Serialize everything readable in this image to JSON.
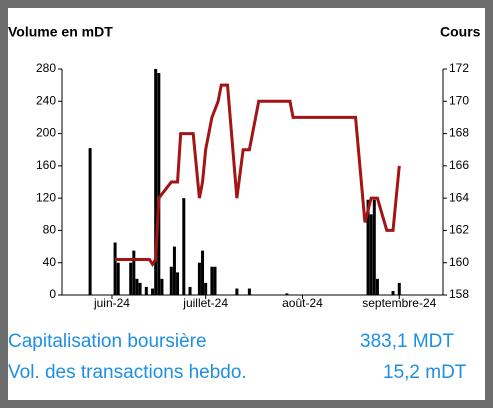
{
  "chart_data": {
    "type": "bar",
    "y_label": "Volume en mDT",
    "y2_label": "Cours",
    "xlim": [
      -16,
      106
    ],
    "xticks": [
      {
        "value": 0,
        "label": "juin-24"
      },
      {
        "value": 30,
        "label": "juillet-24"
      },
      {
        "value": 61,
        "label": "août-24"
      },
      {
        "value": 92,
        "label": "septembre-24"
      }
    ],
    "ylim": [
      0,
      280
    ],
    "yticks": [
      0,
      40,
      80,
      120,
      160,
      200,
      240,
      280
    ],
    "y2lim": [
      158,
      172
    ],
    "y2ticks": [
      158,
      160,
      162,
      164,
      166,
      168,
      170,
      172
    ],
    "series": [
      {
        "type": "bar",
        "color": "#000000",
        "x": [
          -7,
          1,
          2,
          6,
          7,
          8,
          9,
          11,
          13,
          14,
          15,
          16,
          19,
          20,
          21,
          23,
          25,
          28,
          29,
          30,
          32,
          33,
          40,
          44,
          56,
          82,
          83,
          84,
          85,
          90,
          92
        ],
        "values": [
          182,
          65,
          40,
          40,
          55,
          20,
          15,
          10,
          8,
          280,
          275,
          20,
          35,
          60,
          28,
          120,
          10,
          40,
          55,
          15,
          35,
          35,
          8,
          8,
          2,
          118,
          100,
          118,
          20,
          5,
          15
        ]
      },
      {
        "type": "line",
        "axis": "y2",
        "color": "#a31515",
        "x": [
          1,
          4,
          7,
          9,
          12,
          13,
          14,
          15,
          17,
          19,
          21,
          22,
          26,
          28,
          29,
          30,
          32,
          34,
          35,
          37,
          40,
          42,
          44,
          47,
          52,
          57,
          58,
          64,
          70,
          78,
          81,
          83,
          85,
          88,
          90,
          92
        ],
        "values": [
          160.2,
          160.2,
          160.2,
          160.2,
          160.2,
          159.9,
          160.2,
          164,
          164.5,
          165,
          165,
          168,
          168,
          164,
          165,
          167,
          169,
          170,
          171,
          171,
          164,
          167,
          167,
          170,
          170,
          170,
          169,
          169,
          169,
          169,
          162.5,
          164,
          164,
          162,
          162,
          166
        ]
      }
    ]
  },
  "summary": {
    "rows": [
      [
        "Capitalisation boursière",
        "383,1 MDT"
      ],
      [
        "Vol. des transactions hebdo.",
        "15,2 mDT"
      ]
    ]
  }
}
